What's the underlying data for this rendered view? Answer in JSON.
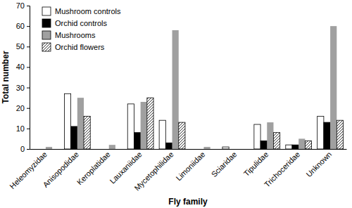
{
  "chart_data": {
    "type": "bar",
    "x_label": "Fly family",
    "y_label": "Total number",
    "categories": [
      "Heleomyzidae",
      "Anisopodidae",
      "Keroplatidae",
      "Lauxaniidae",
      "Mycetophilidae",
      "Limoniidae",
      "Sciaridae",
      "Tipulidae",
      "Trichoceridae",
      "Unknown"
    ],
    "series": [
      {
        "name": "Mushroom controls",
        "color": "#ffffff",
        "values": [
          0,
          27,
          0,
          22,
          14,
          0,
          1,
          12,
          2,
          16
        ]
      },
      {
        "name": "Orchid controls",
        "color": "#000000",
        "values": [
          0,
          11,
          0,
          8,
          3,
          0,
          0,
          4,
          2,
          13
        ]
      },
      {
        "name": "Mushrooms",
        "color": "#a0a0a0",
        "values": [
          1,
          25,
          2,
          23,
          58,
          1,
          0,
          13,
          5,
          60
        ]
      },
      {
        "name": "Orchid flowers",
        "color": "#ffffff",
        "marker": "hatch",
        "values": [
          0,
          16,
          0,
          25,
          13,
          0,
          0,
          8,
          4,
          14
        ]
      }
    ],
    "ylim": [
      0,
      70
    ],
    "yticks": [
      0,
      10,
      20,
      30,
      40,
      50,
      60,
      70
    ],
    "grid": false,
    "legend": "top-left"
  }
}
